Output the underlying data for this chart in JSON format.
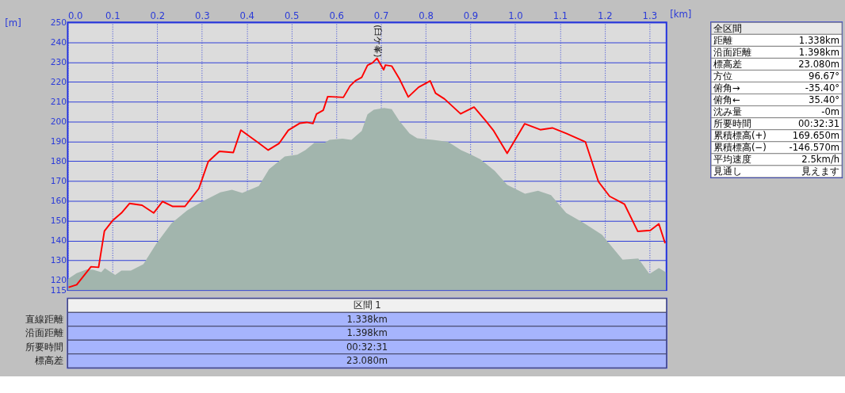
{
  "chart_data": [
    {
      "type": "line",
      "xlabel": "[km]",
      "ylabel": "[m]",
      "xlim": [
        0,
        1.338
      ],
      "ylim": [
        115,
        250
      ],
      "xticks": [
        {
          "value": 0,
          "label": "0.0"
        },
        0.1,
        0.2,
        0.3,
        0.4,
        0.5,
        0.6,
        0.7,
        0.8,
        0.9,
        {
          "value": 1,
          "label": "1.0"
        },
        1.1,
        1.2,
        1.3
      ],
      "yticks": [
        115,
        120,
        130,
        140,
        150,
        160,
        170,
        180,
        190,
        200,
        210,
        220,
        230,
        240,
        250
      ],
      "grid": true,
      "marker": "none",
      "line_style": "solid",
      "annotations": [
        "(臼ケ峯)"
      ],
      "series": [
        {
          "type": "area",
          "color": "#a2b5ad",
          "x": [
            0,
            0.02,
            0.043,
            0.057,
            0.075,
            0.083,
            0.106,
            0.12,
            0.141,
            0.169,
            0.198,
            0.232,
            0.267,
            0.307,
            0.341,
            0.367,
            0.39,
            0.427,
            0.45,
            0.485,
            0.513,
            0.531,
            0.551,
            0.574,
            0.585,
            0.614,
            0.634,
            0.657,
            0.67,
            0.684,
            0.707,
            0.724,
            0.741,
            0.764,
            0.781,
            0.816,
            0.85,
            0.879,
            0.899,
            0.922,
            0.954,
            0.982,
            1.022,
            1.051,
            1.08,
            1.114,
            1.154,
            1.194,
            1.24,
            1.275,
            1.3,
            1.321,
            1.337
          ],
          "values": [
            120.5,
            123.5,
            125.4,
            125.2,
            124,
            126,
            122.6,
            124.8,
            124.8,
            128,
            138.4,
            148.7,
            155.2,
            160.4,
            164.3,
            165.6,
            164,
            167.5,
            176,
            182.4,
            183.3,
            185.6,
            189.3,
            189.3,
            190.8,
            191.4,
            190.8,
            195.3,
            203.7,
            206,
            206.9,
            206.3,
            200.4,
            194,
            191.6,
            190.8,
            189.8,
            185.6,
            183.6,
            181,
            175.2,
            168.1,
            163.6,
            165.1,
            162.9,
            153.9,
            148.7,
            142.9,
            130.3,
            130.9,
            123.1,
            126.1,
            123.9
          ]
        },
        {
          "type": "line",
          "color": "#ff0000",
          "x": [
            0.002,
            0.02,
            0.052,
            0.069,
            0.082,
            0.1,
            0.12,
            0.138,
            0.166,
            0.192,
            0.212,
            0.235,
            0.262,
            0.293,
            0.314,
            0.339,
            0.37,
            0.387,
            0.425,
            0.448,
            0.472,
            0.493,
            0.519,
            0.534,
            0.548,
            0.556,
            0.571,
            0.581,
            0.616,
            0.631,
            0.643,
            0.657,
            0.67,
            0.681,
            0.691,
            0.706,
            0.71,
            0.724,
            0.742,
            0.761,
            0.784,
            0.81,
            0.822,
            0.842,
            0.878,
            0.908,
            0.934,
            0.952,
            0.982,
            1.021,
            1.056,
            1.083,
            1.114,
            1.157,
            1.186,
            1.211,
            1.244,
            1.274,
            1.302,
            1.321,
            1.335
          ],
          "values": [
            116.4,
            117.7,
            126.8,
            126.5,
            144.8,
            150,
            153.9,
            158.7,
            157.8,
            153.9,
            159.7,
            157.2,
            157.2,
            166.2,
            179.8,
            185,
            184.4,
            195.7,
            189.5,
            185.6,
            188.9,
            195.6,
            199.2,
            199.6,
            199,
            203.8,
            205.7,
            212.6,
            212.2,
            218,
            220.6,
            222.3,
            228.4,
            229.6,
            231.9,
            226.1,
            228.5,
            228,
            221.2,
            212.4,
            217.3,
            220.5,
            214.3,
            211.4,
            203.9,
            207.3,
            200.4,
            195.3,
            184,
            198.9,
            195.9,
            196.8,
            194,
            189.7,
            169.7,
            162.3,
            158.4,
            144.6,
            145.1,
            148.4,
            138.6
          ]
        }
      ]
    },
    {
      "type": "other",
      "title": "区間 1",
      "categories": [
        "直線距離",
        "沿面距離",
        "所要時間",
        "標高差"
      ],
      "value_labels": [
        "1.338km",
        "1.398km",
        "00:32:31",
        "23.080m"
      ]
    },
    {
      "type": "other",
      "title": "全区間",
      "categories": [
        "距離",
        "沿面距離",
        "標高差",
        "方位",
        "俯角→",
        "俯角←",
        "沈み量",
        "所要時間",
        "累積標高(+)",
        "累積標高(−)",
        "平均速度",
        "見通し"
      ],
      "value_labels": [
        "1.338km",
        "1.398km",
        "23.080m",
        "96.67°",
        "-35.40°",
        "35.40°",
        "-0m",
        "00:32:31",
        "169.650m",
        "-146.570m",
        "2.5km/h",
        "見えます"
      ]
    }
  ]
}
